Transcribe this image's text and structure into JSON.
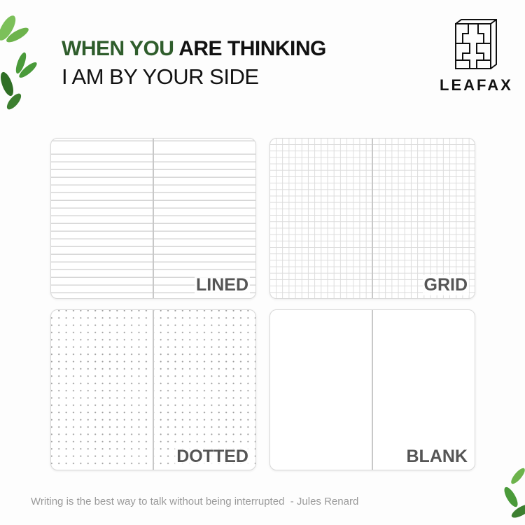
{
  "headline": {
    "line1_green": "WHEN YOU",
    "line1_black": "ARE THINKING",
    "line2": "I AM BY YOUR SIDE"
  },
  "brand": {
    "name": "LEAFAX"
  },
  "notebooks": [
    {
      "label": "LINED",
      "style": "lined"
    },
    {
      "label": "GRID",
      "style": "grid"
    },
    {
      "label": "DOTTED",
      "style": "dotted"
    },
    {
      "label": "BLANK",
      "style": "blank"
    }
  ],
  "quote": "Writing is the best way to talk without being interrupted  - Jules Renard",
  "colors": {
    "accent_green": "#2f5d2c",
    "label_grey": "#555555",
    "quote_grey": "#9a9a9a"
  }
}
